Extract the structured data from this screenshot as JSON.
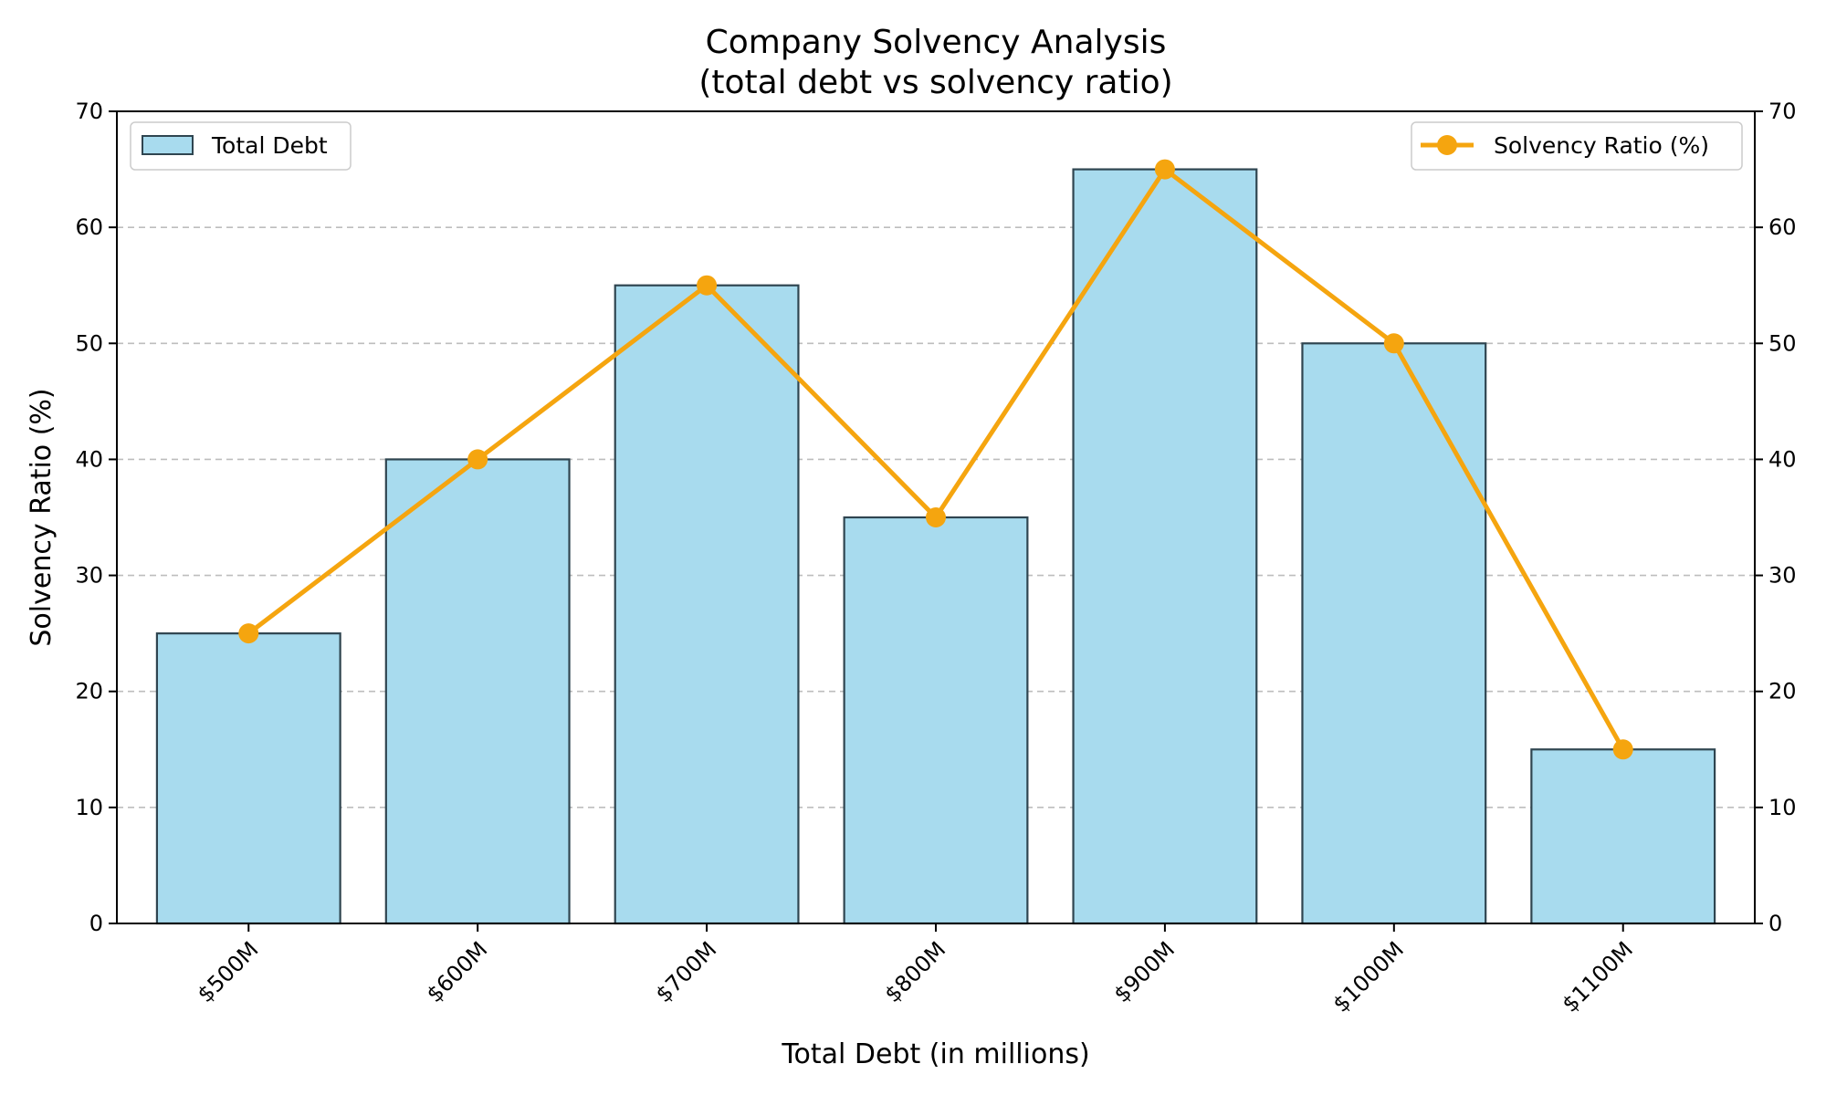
{
  "chart_data": {
    "type": "bar",
    "title": "Company Solvency Analysis",
    "subtitle": "(total debt vs solvency ratio)",
    "xlabel": "Total Debt (in millions)",
    "ylabel": "Solvency Ratio (%)",
    "categories": [
      "$500M",
      "$600M",
      "$700M",
      "$800M",
      "$900M",
      "$1000M",
      "$1100M"
    ],
    "ylim": [
      0,
      70
    ],
    "yticks": [
      "0",
      "10",
      "20",
      "30",
      "40",
      "50",
      "60",
      "70"
    ],
    "grid": "y-dashed",
    "series": [
      {
        "name": "Total Debt",
        "type": "bar",
        "values": [
          25,
          40,
          55,
          35,
          65,
          50,
          15
        ],
        "color": "#a8dbee",
        "edge": "#2f4550"
      },
      {
        "name": "Solvency Ratio (%)",
        "type": "line",
        "values": [
          25,
          40,
          55,
          35,
          65,
          50,
          15
        ],
        "color": "#f5a50f"
      }
    ],
    "legends": [
      {
        "series": "Total Debt",
        "placement": "top-left"
      },
      {
        "series": "Solvency Ratio (%)",
        "placement": "top-right"
      }
    ]
  }
}
